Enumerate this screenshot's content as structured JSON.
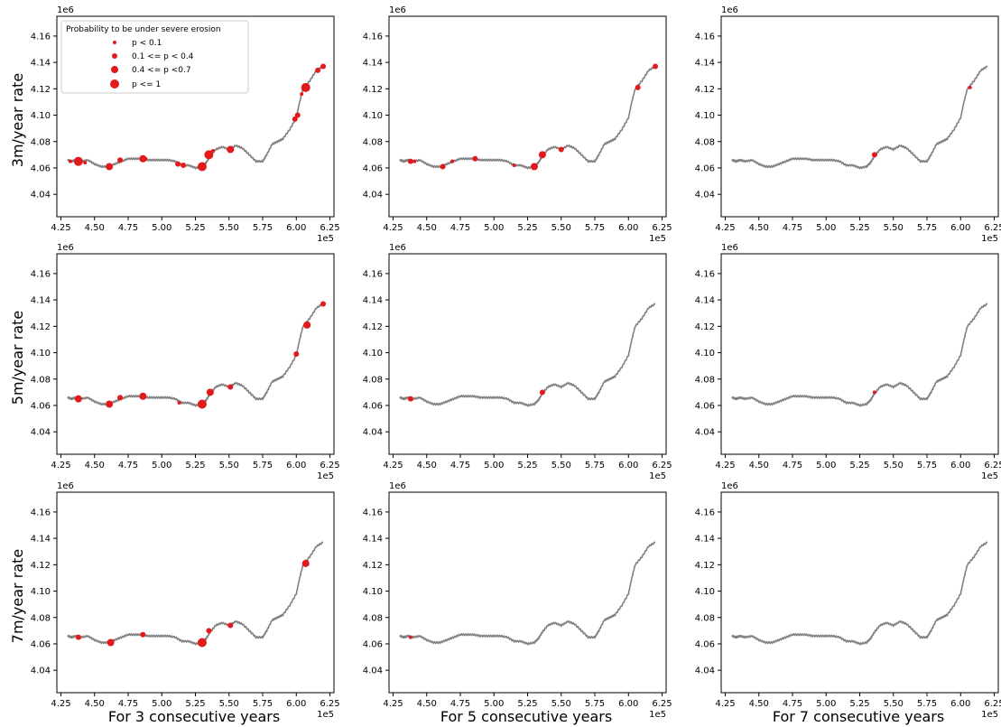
{
  "chart_data": {
    "type": "scatter",
    "layout": "3x3 grid of line+scatter panels (shoreline with erosion points)",
    "row_labels": [
      "3m/year rate",
      "5m/year rate",
      "7m/year rate"
    ],
    "col_labels": [
      "For 3 consecutive years",
      "For 5 consecutive years",
      "For 7 consecutive years"
    ],
    "x_ticks": [
      "4.25",
      "4.50",
      "4.75",
      "5.00",
      "5.25",
      "5.50",
      "5.75",
      "6.00",
      "6.25"
    ],
    "x_tick_values": [
      4.25,
      4.5,
      4.75,
      5.0,
      5.25,
      5.5,
      5.75,
      6.0,
      6.25
    ],
    "x_offset": "1e5",
    "xlim": [
      4.22,
      6.28
    ],
    "y_ticks": [
      "4.04",
      "4.06",
      "4.08",
      "4.10",
      "4.12",
      "4.14",
      "4.16"
    ],
    "y_tick_values": [
      4.04,
      4.06,
      4.08,
      4.1,
      4.12,
      4.14,
      4.16
    ],
    "y_offset": "1e6",
    "ylim": [
      4.023,
      4.175
    ],
    "line_color": "#808080",
    "point_color": "#e31a1c",
    "legend": {
      "title": "Probability to be under severe erosion",
      "placement": "upper left of first panel",
      "entries": [
        {
          "label": "p < 0.1",
          "size": 1
        },
        {
          "label": "0.1 <= p < 0.4",
          "size": 2
        },
        {
          "label": "0.4 <= p <0.7",
          "size": 3
        },
        {
          "label": "p <= 1",
          "size": 4
        }
      ]
    },
    "shoreline": [
      [
        4.3,
        4.066
      ],
      [
        4.33,
        4.065
      ],
      [
        4.36,
        4.066
      ],
      [
        4.4,
        4.065
      ],
      [
        4.45,
        4.066
      ],
      [
        4.5,
        4.063
      ],
      [
        4.55,
        4.061
      ],
      [
        4.6,
        4.061
      ],
      [
        4.65,
        4.063
      ],
      [
        4.7,
        4.065
      ],
      [
        4.75,
        4.067
      ],
      [
        4.8,
        4.067
      ],
      [
        4.85,
        4.067
      ],
      [
        4.9,
        4.066
      ],
      [
        4.95,
        4.066
      ],
      [
        5.0,
        4.066
      ],
      [
        5.05,
        4.066
      ],
      [
        5.1,
        4.065
      ],
      [
        5.15,
        4.062
      ],
      [
        5.2,
        4.062
      ],
      [
        5.25,
        4.06
      ],
      [
        5.3,
        4.061
      ],
      [
        5.33,
        4.064
      ],
      [
        5.36,
        4.069
      ],
      [
        5.4,
        4.074
      ],
      [
        5.45,
        4.076
      ],
      [
        5.5,
        4.074
      ],
      [
        5.55,
        4.077
      ],
      [
        5.6,
        4.075
      ],
      [
        5.65,
        4.07
      ],
      [
        5.7,
        4.065
      ],
      [
        5.75,
        4.065
      ],
      [
        5.78,
        4.07
      ],
      [
        5.82,
        4.078
      ],
      [
        5.86,
        4.08
      ],
      [
        5.9,
        4.082
      ],
      [
        5.95,
        4.089
      ],
      [
        6.0,
        4.098
      ],
      [
        6.02,
        4.108
      ],
      [
        6.05,
        4.12
      ],
      [
        6.1,
        4.126
      ],
      [
        6.15,
        4.134
      ],
      [
        6.2,
        4.137
      ]
    ],
    "panels": [
      {
        "row": 0,
        "col": 0,
        "points": [
          [
            4.32,
            4.065,
            1
          ],
          [
            4.38,
            4.065,
            4
          ],
          [
            4.43,
            4.064,
            1
          ],
          [
            4.61,
            4.061,
            3
          ],
          [
            4.69,
            4.066,
            2
          ],
          [
            4.86,
            4.067,
            3
          ],
          [
            4.88,
            4.067,
            1
          ],
          [
            5.12,
            4.063,
            2
          ],
          [
            5.16,
            4.062,
            2
          ],
          [
            5.3,
            4.061,
            4
          ],
          [
            5.35,
            4.07,
            4
          ],
          [
            5.38,
            4.073,
            1
          ],
          [
            5.51,
            4.074,
            3
          ],
          [
            5.99,
            4.097,
            2
          ],
          [
            6.01,
            4.1,
            2
          ],
          [
            6.04,
            4.116,
            1
          ],
          [
            6.07,
            4.121,
            4
          ],
          [
            6.16,
            4.134,
            2
          ],
          [
            6.2,
            4.137,
            2
          ]
        ]
      },
      {
        "row": 0,
        "col": 1,
        "points": [
          [
            4.38,
            4.065,
            2
          ],
          [
            4.41,
            4.065,
            1
          ],
          [
            4.62,
            4.061,
            2
          ],
          [
            4.69,
            4.065,
            1
          ],
          [
            4.86,
            4.067,
            2
          ],
          [
            5.15,
            4.062,
            1
          ],
          [
            5.3,
            4.061,
            3
          ],
          [
            5.36,
            4.07,
            3
          ],
          [
            5.5,
            4.074,
            2
          ],
          [
            6.07,
            4.121,
            2
          ],
          [
            6.2,
            4.137,
            2
          ]
        ]
      },
      {
        "row": 0,
        "col": 2,
        "points": [
          [
            5.36,
            4.07,
            2
          ],
          [
            6.07,
            4.121,
            1
          ]
        ]
      },
      {
        "row": 1,
        "col": 0,
        "points": [
          [
            4.38,
            4.065,
            3
          ],
          [
            4.61,
            4.061,
            3
          ],
          [
            4.69,
            4.066,
            2
          ],
          [
            4.86,
            4.067,
            3
          ],
          [
            5.13,
            4.062,
            1
          ],
          [
            5.3,
            4.061,
            4
          ],
          [
            5.36,
            4.07,
            3
          ],
          [
            5.51,
            4.074,
            2
          ],
          [
            6.0,
            4.099,
            2
          ],
          [
            6.08,
            4.121,
            3
          ],
          [
            6.2,
            4.137,
            2
          ]
        ]
      },
      {
        "row": 1,
        "col": 1,
        "points": [
          [
            4.38,
            4.065,
            2
          ],
          [
            5.36,
            4.07,
            2
          ]
        ]
      },
      {
        "row": 1,
        "col": 2,
        "points": [
          [
            5.36,
            4.07,
            1
          ]
        ]
      },
      {
        "row": 2,
        "col": 0,
        "points": [
          [
            4.38,
            4.065,
            2
          ],
          [
            4.62,
            4.061,
            3
          ],
          [
            4.86,
            4.067,
            2
          ],
          [
            5.3,
            4.061,
            4
          ],
          [
            5.35,
            4.07,
            2
          ],
          [
            5.51,
            4.074,
            2
          ],
          [
            6.07,
            4.121,
            3
          ]
        ]
      },
      {
        "row": 2,
        "col": 1,
        "points": [
          [
            4.38,
            4.065,
            1
          ]
        ]
      },
      {
        "row": 2,
        "col": 2,
        "points": []
      }
    ]
  }
}
